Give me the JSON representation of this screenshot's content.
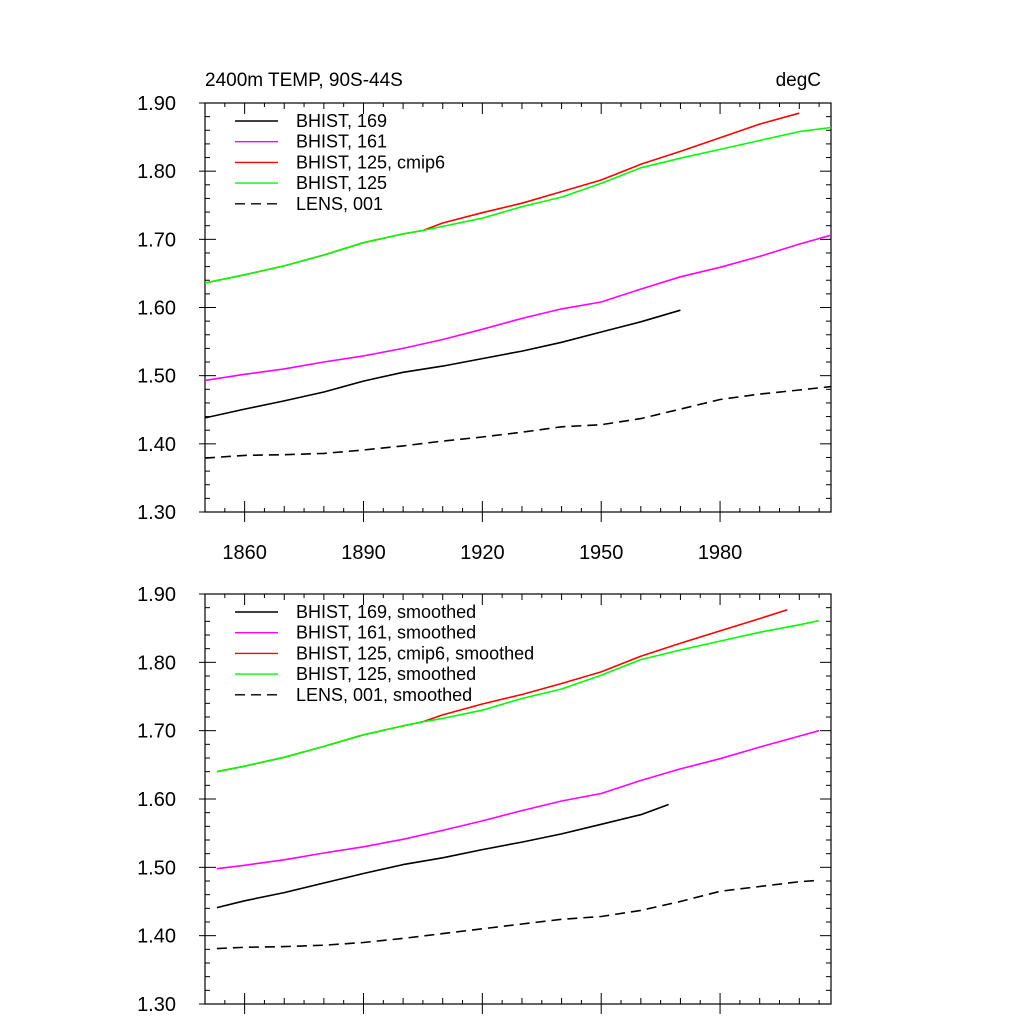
{
  "chart_data": [
    {
      "type": "line",
      "title": "2400m TEMP, 90S-44S",
      "units": "degC",
      "xlim": [
        1850,
        2008
      ],
      "ylim": [
        1.3,
        1.9
      ],
      "yticks": [
        "1.30",
        "1.40",
        "1.50",
        "1.60",
        "1.70",
        "1.80",
        "1.90"
      ],
      "xticks": [
        "1860",
        "1890",
        "1920",
        "1950",
        "1980"
      ],
      "series": [
        {
          "name": "BHIST, 169",
          "color": "#000000",
          "dash": "solid",
          "x": [
            1850,
            1860,
            1870,
            1880,
            1890,
            1900,
            1910,
            1920,
            1930,
            1940,
            1950,
            1960,
            1970
          ],
          "y": [
            1.438,
            1.451,
            1.463,
            1.476,
            1.492,
            1.505,
            1.514,
            1.525,
            1.536,
            1.549,
            1.564,
            1.579,
            1.596
          ]
        },
        {
          "name": "BHIST, 161",
          "color": "#ff00ff",
          "dash": "solid",
          "x": [
            1850,
            1860,
            1870,
            1880,
            1890,
            1900,
            1910,
            1920,
            1930,
            1940,
            1950,
            1960,
            1970,
            1980,
            1990,
            2000,
            2008
          ],
          "y": [
            1.493,
            1.502,
            1.51,
            1.52,
            1.529,
            1.54,
            1.553,
            1.568,
            1.584,
            1.598,
            1.608,
            1.627,
            1.645,
            1.659,
            1.675,
            1.693,
            1.706
          ]
        },
        {
          "name": "BHIST, 125, cmip6",
          "color": "#ff0000",
          "dash": "solid",
          "x": [
            1850,
            1860,
            1870,
            1880,
            1890,
            1900,
            1905,
            1910,
            1920,
            1930,
            1940,
            1950,
            1960,
            1970,
            1980,
            1990,
            2000
          ],
          "y": [
            1.636,
            1.648,
            1.661,
            1.677,
            1.695,
            1.708,
            1.713,
            1.724,
            1.739,
            1.753,
            1.77,
            1.787,
            1.81,
            1.829,
            1.849,
            1.869,
            1.885
          ]
        },
        {
          "name": "BHIST, 125",
          "color": "#00ff00",
          "dash": "solid",
          "x": [
            1850,
            1860,
            1870,
            1880,
            1890,
            1900,
            1905,
            1910,
            1920,
            1930,
            1940,
            1950,
            1960,
            1970,
            1980,
            1990,
            2000,
            2008
          ],
          "y": [
            1.636,
            1.648,
            1.661,
            1.677,
            1.695,
            1.708,
            1.713,
            1.719,
            1.731,
            1.748,
            1.762,
            1.782,
            1.805,
            1.819,
            1.832,
            1.845,
            1.858,
            1.864
          ]
        },
        {
          "name": "LENS, 001",
          "color": "#000000",
          "dash": "dashed",
          "x": [
            1850,
            1860,
            1870,
            1880,
            1890,
            1900,
            1910,
            1920,
            1930,
            1940,
            1950,
            1960,
            1970,
            1980,
            1990,
            2000,
            2008
          ],
          "y": [
            1.379,
            1.383,
            1.384,
            1.386,
            1.391,
            1.397,
            1.404,
            1.41,
            1.417,
            1.425,
            1.428,
            1.437,
            1.451,
            1.465,
            1.473,
            1.479,
            1.484
          ]
        }
      ]
    },
    {
      "type": "line",
      "xlim": [
        1850,
        2008
      ],
      "ylim": [
        1.3,
        1.9
      ],
      "yticks": [
        "1.30",
        "1.40",
        "1.50",
        "1.60",
        "1.70",
        "1.80",
        "1.90"
      ],
      "series": [
        {
          "name": "BHIST, 169, smoothed",
          "color": "#000000",
          "dash": "solid",
          "x": [
            1853,
            1860,
            1870,
            1880,
            1890,
            1900,
            1910,
            1920,
            1930,
            1940,
            1950,
            1960,
            1967
          ],
          "y": [
            1.441,
            1.451,
            1.463,
            1.477,
            1.491,
            1.504,
            1.514,
            1.526,
            1.537,
            1.549,
            1.563,
            1.577,
            1.592
          ]
        },
        {
          "name": "BHIST, 161, smoothed",
          "color": "#ff00ff",
          "dash": "solid",
          "x": [
            1853,
            1860,
            1870,
            1880,
            1890,
            1900,
            1910,
            1920,
            1930,
            1940,
            1950,
            1960,
            1970,
            1980,
            1990,
            2000,
            2005
          ],
          "y": [
            1.498,
            1.503,
            1.511,
            1.521,
            1.53,
            1.541,
            1.554,
            1.568,
            1.583,
            1.597,
            1.608,
            1.627,
            1.644,
            1.659,
            1.676,
            1.692,
            1.7
          ]
        },
        {
          "name": "BHIST, 125, cmip6, smoothed",
          "color": "#ff0000",
          "dash": "solid",
          "x": [
            1853,
            1860,
            1870,
            1880,
            1890,
            1900,
            1905,
            1910,
            1920,
            1930,
            1940,
            1950,
            1960,
            1970,
            1980,
            1990,
            1997
          ],
          "y": [
            1.64,
            1.648,
            1.661,
            1.677,
            1.694,
            1.707,
            1.713,
            1.723,
            1.739,
            1.753,
            1.769,
            1.786,
            1.809,
            1.828,
            1.846,
            1.864,
            1.877
          ]
        },
        {
          "name": "BHIST, 125, smoothed",
          "color": "#00ff00",
          "dash": "solid",
          "x": [
            1853,
            1860,
            1870,
            1880,
            1890,
            1900,
            1905,
            1910,
            1920,
            1930,
            1940,
            1950,
            1960,
            1970,
            1980,
            1990,
            2000,
            2005
          ],
          "y": [
            1.64,
            1.648,
            1.661,
            1.677,
            1.694,
            1.707,
            1.713,
            1.718,
            1.73,
            1.747,
            1.761,
            1.781,
            1.804,
            1.818,
            1.831,
            1.844,
            1.855,
            1.861
          ]
        },
        {
          "name": "LENS, 001, smoothed",
          "color": "#000000",
          "dash": "dashed",
          "x": [
            1853,
            1860,
            1870,
            1880,
            1890,
            1900,
            1910,
            1920,
            1930,
            1940,
            1950,
            1960,
            1970,
            1980,
            1990,
            2000,
            2005
          ],
          "y": [
            1.381,
            1.383,
            1.384,
            1.386,
            1.39,
            1.396,
            1.403,
            1.41,
            1.417,
            1.424,
            1.428,
            1.437,
            1.45,
            1.465,
            1.472,
            1.479,
            1.481
          ]
        }
      ]
    }
  ]
}
